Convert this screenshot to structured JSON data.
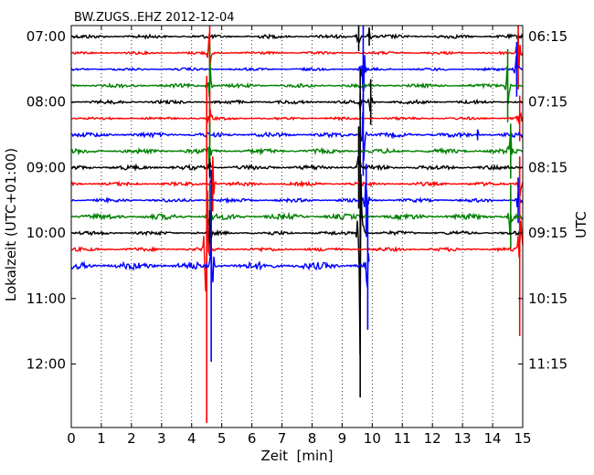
{
  "chart_data": {
    "type": "line",
    "title": "BW.ZUGS..EHZ 2012-12-04",
    "xlabel": "Zeit  [min]",
    "ylabel_left": "Lokalzeit (UTC+01:00)",
    "ylabel_right": "UTC",
    "xlim": [
      0,
      15
    ],
    "x_ticks": [
      0,
      1,
      2,
      3,
      4,
      5,
      6,
      7,
      8,
      9,
      10,
      11,
      12,
      13,
      14,
      15
    ],
    "grid": "vertical dotted",
    "left_ticks": [
      {
        "label": "07:00",
        "hour": 7.0
      },
      {
        "label": "08:00",
        "hour": 8.0
      },
      {
        "label": "09:00",
        "hour": 9.0
      },
      {
        "label": "10:00",
        "hour": 10.0
      },
      {
        "label": "11:00",
        "hour": 11.0
      },
      {
        "label": "12:00",
        "hour": 12.0
      }
    ],
    "right_ticks": [
      {
        "label": "06:15",
        "hour": 7.0
      },
      {
        "label": "07:15",
        "hour": 8.0
      },
      {
        "label": "08:15",
        "hour": 9.0
      },
      {
        "label": "09:15",
        "hour": 10.0
      },
      {
        "label": "10:15",
        "hour": 11.0
      },
      {
        "label": "11:15",
        "hour": 12.0
      }
    ],
    "colors": [
      "#000000",
      "#ff0000",
      "#0000ff",
      "#008000"
    ],
    "traces": [
      {
        "start_hour": 7.0,
        "color": "#000000",
        "noise": 2.0,
        "end_min": 15,
        "events": [
          {
            "t": 9.55,
            "amp": 16
          },
          {
            "t": 9.9,
            "amp": 10
          }
        ]
      },
      {
        "start_hour": 7.25,
        "color": "#ff0000",
        "noise": 1.5,
        "end_min": 15,
        "events": [
          {
            "t": 4.6,
            "amp": 35
          },
          {
            "t": 14.85,
            "amp": 40
          }
        ]
      },
      {
        "start_hour": 7.5,
        "color": "#0000ff",
        "noise": 1.5,
        "end_min": 15,
        "events": [
          {
            "t": 9.7,
            "amp": 60
          },
          {
            "t": 14.8,
            "amp": 30
          }
        ]
      },
      {
        "start_hour": 7.75,
        "color": "#008000",
        "noise": 2.0,
        "end_min": 15,
        "events": [
          {
            "t": 4.6,
            "amp": 45
          },
          {
            "t": 14.5,
            "amp": 40
          }
        ]
      },
      {
        "start_hour": 8.0,
        "color": "#000000",
        "noise": 2.0,
        "end_min": 15,
        "events": [
          {
            "t": 9.6,
            "amp": 10
          },
          {
            "t": 9.95,
            "amp": 25
          }
        ]
      },
      {
        "start_hour": 8.25,
        "color": "#ff0000",
        "noise": 1.5,
        "end_min": 15,
        "events": [
          {
            "t": 4.6,
            "amp": 30
          },
          {
            "t": 14.9,
            "amp": 25
          }
        ]
      },
      {
        "start_hour": 8.5,
        "color": "#0000ff",
        "noise": 2.5,
        "end_min": 15,
        "events": [
          {
            "t": 9.7,
            "amp": 45
          },
          {
            "t": 13.5,
            "amp": 6
          }
        ]
      },
      {
        "start_hour": 8.75,
        "color": "#008000",
        "noise": 2.5,
        "end_min": 15,
        "events": [
          {
            "t": 4.6,
            "amp": 30
          },
          {
            "t": 14.6,
            "amp": 30
          }
        ]
      },
      {
        "start_hour": 9.0,
        "color": "#000000",
        "noise": 2.5,
        "end_min": 15,
        "events": [
          {
            "t": 9.55,
            "amp": 45
          },
          {
            "t": 4.6,
            "amp": 10
          }
        ]
      },
      {
        "start_hour": 9.25,
        "color": "#ff0000",
        "noise": 2.0,
        "end_min": 15,
        "events": [
          {
            "t": 4.7,
            "amp": 30
          },
          {
            "t": 14.9,
            "amp": 30
          }
        ]
      },
      {
        "start_hour": 9.5,
        "color": "#0000ff",
        "noise": 2.0,
        "end_min": 15,
        "events": [
          {
            "t": 9.8,
            "amp": 40
          },
          {
            "t": 14.85,
            "amp": 25
          }
        ]
      },
      {
        "start_hour": 9.75,
        "color": "#008000",
        "noise": 3.0,
        "end_min": 15,
        "events": [
          {
            "t": 4.6,
            "amp": 35
          },
          {
            "t": 14.6,
            "amp": 35
          }
        ]
      },
      {
        "start_hour": 10.0,
        "color": "#000000",
        "noise": 2.0,
        "end_min": 15,
        "events": [
          {
            "t": 4.6,
            "amp": 25
          },
          {
            "t": 9.6,
            "amp": 180
          }
        ]
      },
      {
        "start_hour": 10.25,
        "color": "#ff0000",
        "noise": 2.0,
        "end_min": 15,
        "events": [
          {
            "t": 4.5,
            "amp": 190
          },
          {
            "t": 14.9,
            "amp": 95
          }
        ]
      },
      {
        "start_hour": 10.5,
        "color": "#0000ff",
        "noise": 4.0,
        "end_min": 9.9,
        "events": [
          {
            "t": 9.85,
            "amp": 70
          },
          {
            "t": 4.65,
            "amp": 105
          }
        ]
      }
    ]
  }
}
